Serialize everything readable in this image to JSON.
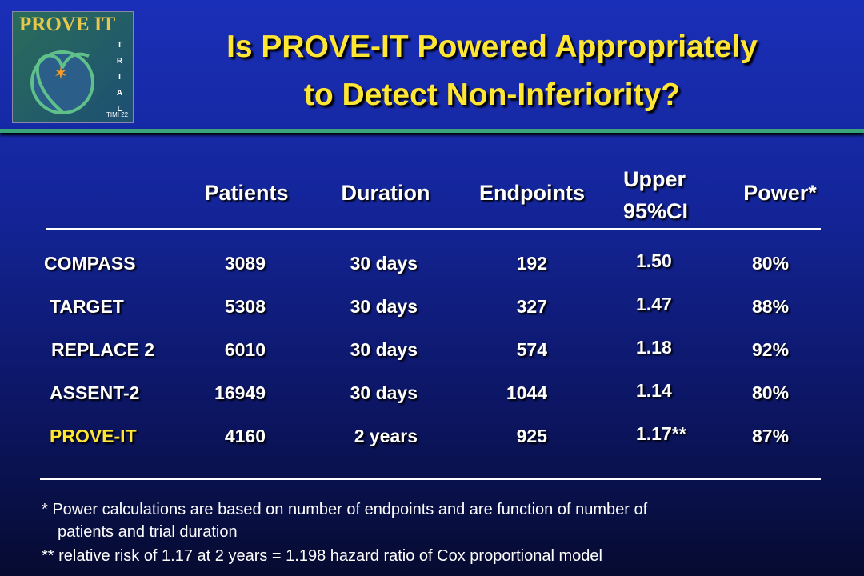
{
  "logo": {
    "name": "PROVE IT",
    "side": "TRIAL",
    "tag": "TIMI 22"
  },
  "header": {
    "title_lines": [
      "Is PROVE-IT Powered Appropriately",
      "to Detect Non-Inferiority?"
    ]
  },
  "table": {
    "columns": [
      "Patients",
      "Duration",
      "Endpoints",
      "Upper 95%CI",
      "Power*"
    ],
    "rows": [
      [
        "COMPASS",
        "3089",
        "30 days",
        "192",
        "1.50",
        "80%"
      ],
      [
        "TARGET",
        "5308",
        "30 days",
        "327",
        "1.47",
        "88%"
      ],
      [
        "REPLACE 2",
        "6010",
        "30 days",
        "574",
        "1.18",
        "92%"
      ],
      [
        "ASSENT-2",
        "16949",
        "30 days",
        "1044",
        "1.14",
        "80%"
      ],
      [
        "PROVE-IT",
        "4160",
        "2 years",
        "925",
        "1.17**",
        "87%"
      ]
    ]
  },
  "footnotes": [
    "* Power calculations are based on number of endpoints and are function of number of",
    "patients and trial duration",
    "** relative risk of 1.17 at 2 years = 1.198 hazard ratio of Cox proportional model"
  ]
}
